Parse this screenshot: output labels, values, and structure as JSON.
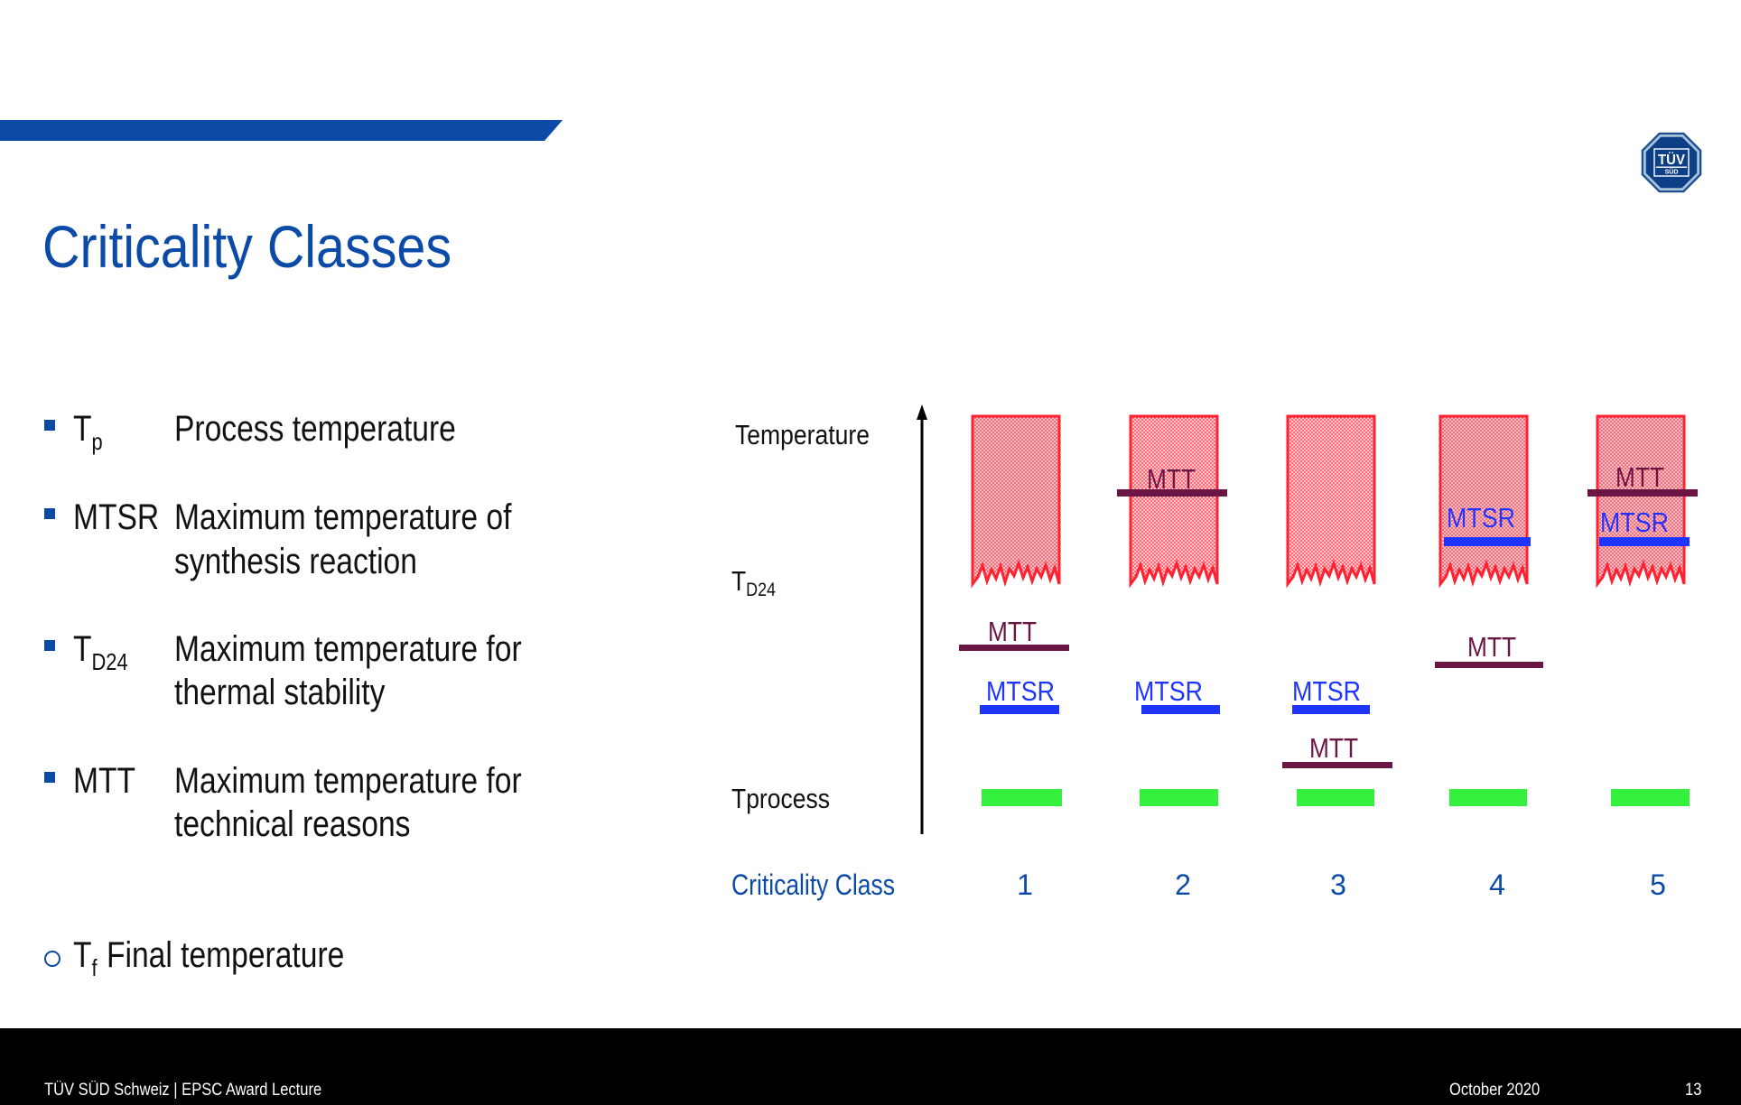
{
  "slide": {
    "title": "Criticality Classes"
  },
  "definitions": [
    {
      "symbol": "T",
      "subscript": "p",
      "lines": [
        "Process temperature"
      ]
    },
    {
      "symbol": "MTSR",
      "lines": [
        "Maximum temperature of",
        "synthesis reaction"
      ]
    },
    {
      "symbol": "T",
      "subscript": "D24",
      "lines": [
        "Maximum temperature for",
        "thermal stability"
      ]
    },
    {
      "symbol": "MTT",
      "lines": [
        "Maximum temperature for",
        "technical reasons"
      ]
    }
  ],
  "note": {
    "symbol": "T",
    "subscript": "f",
    "text": "Final temperature"
  },
  "diagram": {
    "y_axis_label": "Temperature",
    "td24_label": {
      "symbol": "T",
      "subscript": "D24"
    },
    "tprocess_label": "Tprocess",
    "x_axis_label": "Criticality Class",
    "columns": [
      {
        "class": "1",
        "mtt_label": "MTT",
        "mtsr_label": "MTSR"
      },
      {
        "class": "2",
        "mtt_label": "MTT",
        "mtsr_label": "MTSR"
      },
      {
        "class": "3",
        "mtt_label": "MTT",
        "mtsr_label": "MTSR"
      },
      {
        "class": "4",
        "mtt_label": "MTT",
        "mtsr_label": "MTSR"
      },
      {
        "class": "5",
        "mtt_label": "MTT",
        "mtsr_label": "MTSR"
      }
    ]
  },
  "logo": {
    "line1": "TÜV",
    "line2": "SÜD"
  },
  "footer": {
    "source": "TÜV SÜD Schweiz | EPSC Award Lecture",
    "date": "October 2020",
    "page_number": "13"
  },
  "icons": {
    "bullet": "square-bullet-icon",
    "note_bullet": "circle-bullet-icon",
    "axis_arrow": "arrow-up-icon",
    "logo": "tuv-sud-logo"
  },
  "colors": {
    "brand_blue": "#0b4aa6",
    "text": "#111111",
    "mtt_color": "#6b1545",
    "mtsr_color": "#1f35ff",
    "tprocess_color": "#35f03c",
    "runaway_border": "#ff2030",
    "runaway_fill": "#ffc4ca",
    "class_label_color": "#0b4aa6",
    "footer_background": "#000000",
    "footer_text": "#ffffff"
  }
}
